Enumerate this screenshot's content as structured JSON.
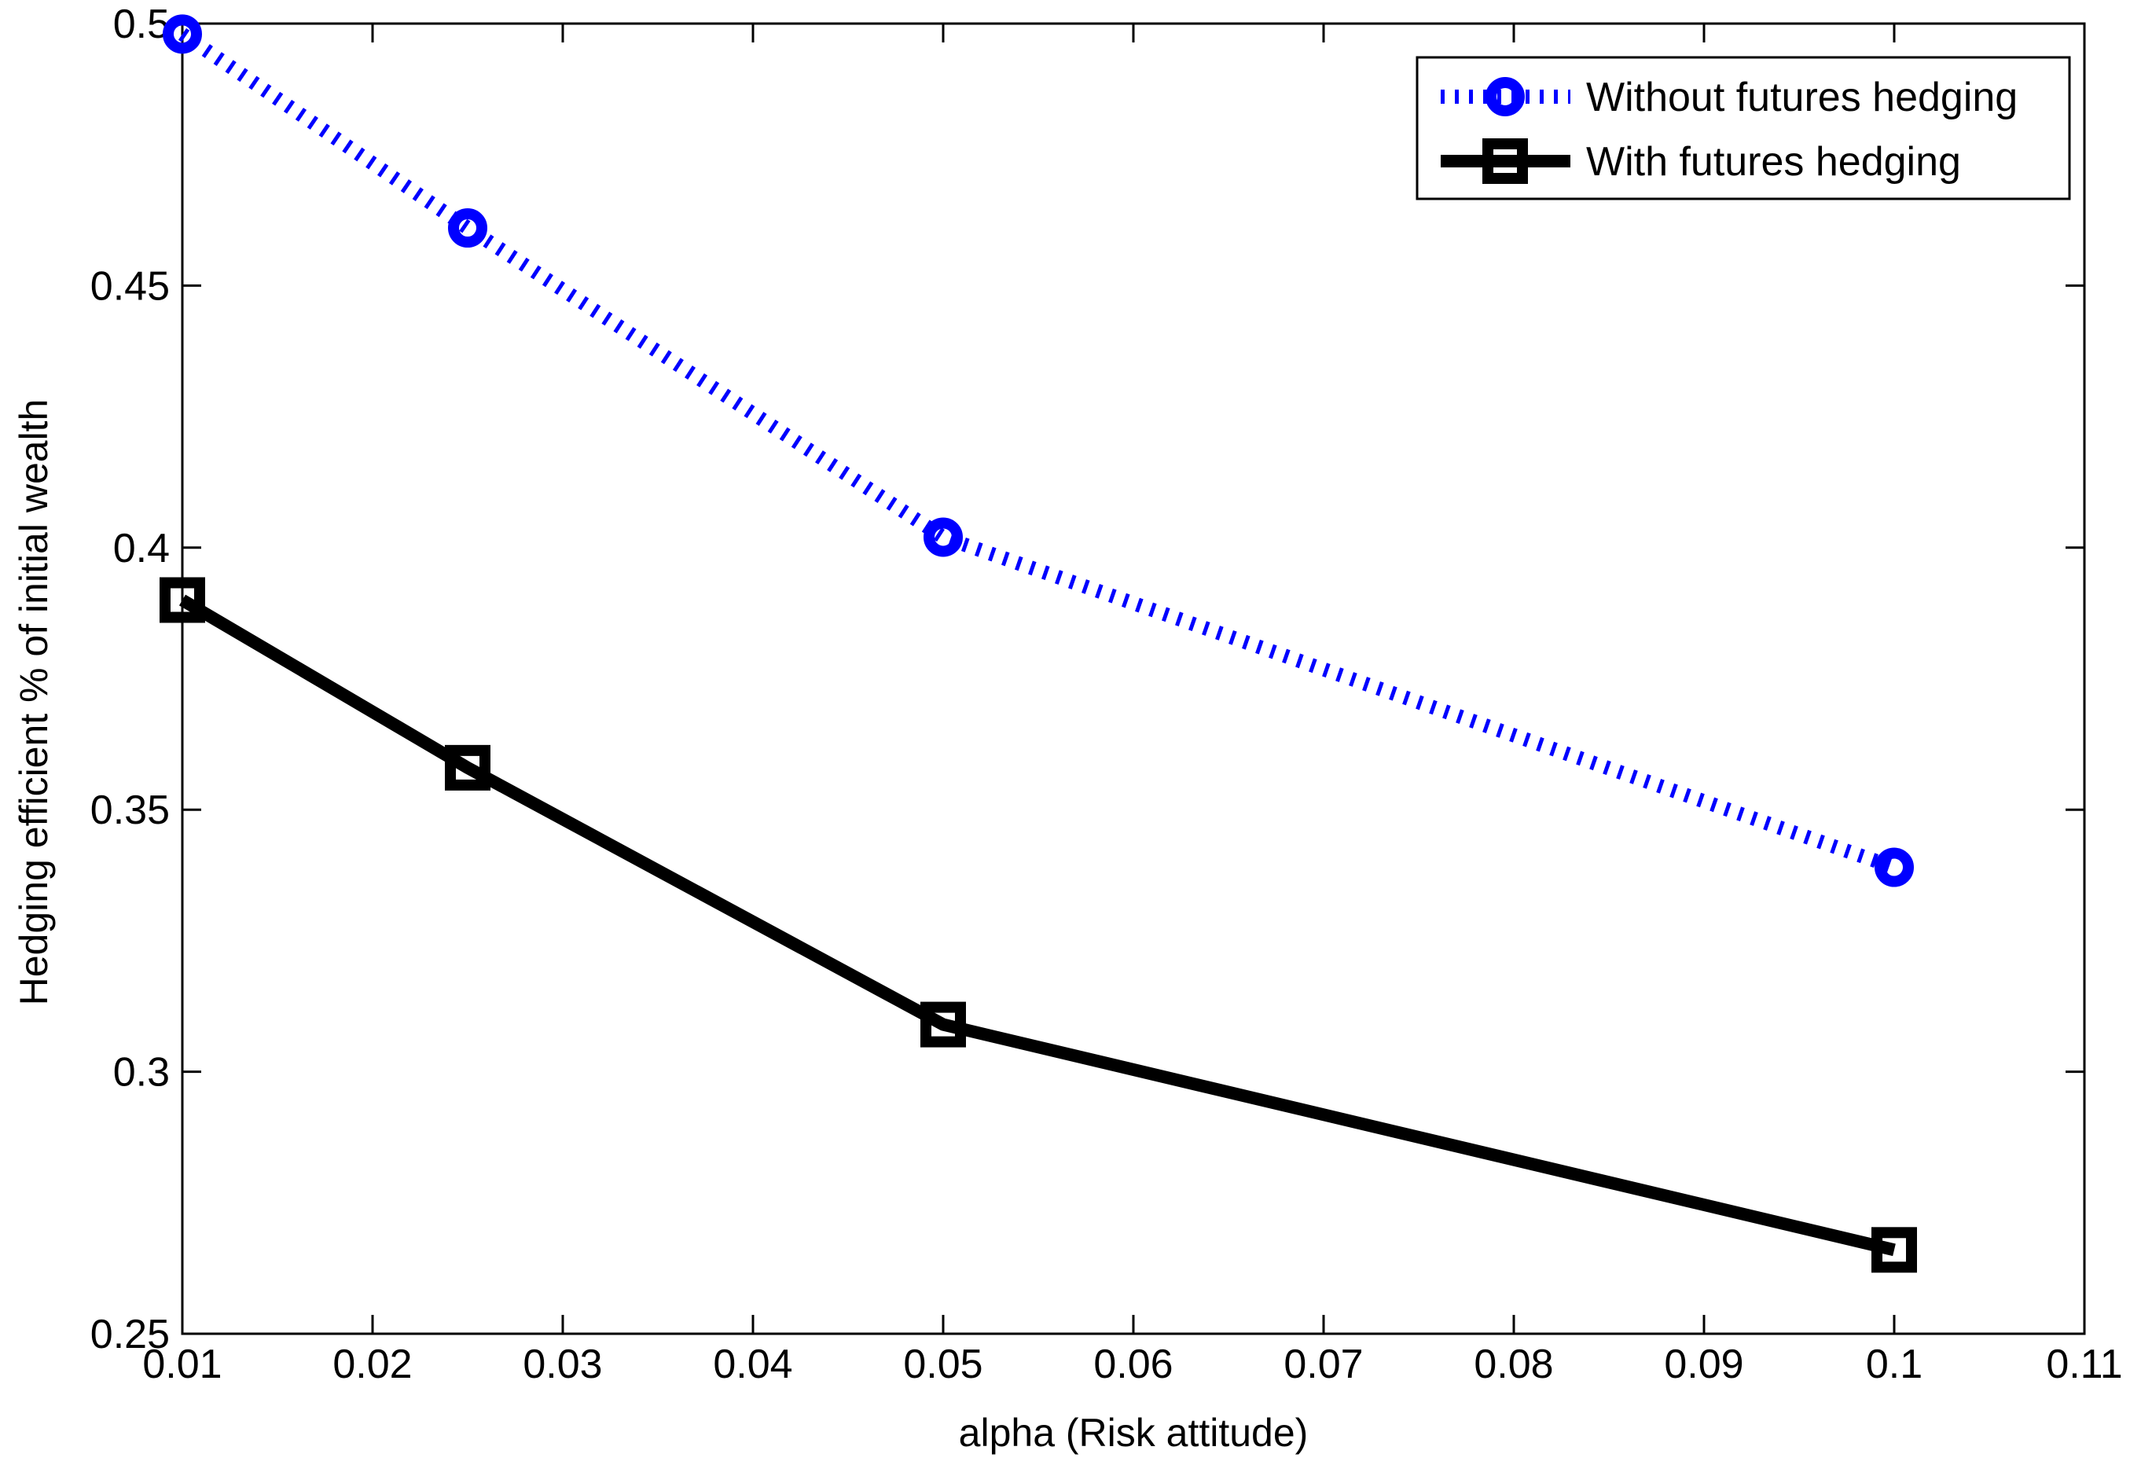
{
  "chart_data": {
    "type": "line",
    "xlabel": "alpha (Risk attitude)",
    "ylabel": "Hedging efficient % of initial wealth",
    "xlim": [
      0.01,
      0.11
    ],
    "ylim": [
      0.25,
      0.5
    ],
    "x_ticks": [
      0.01,
      0.02,
      0.03,
      0.04,
      0.05,
      0.06,
      0.07,
      0.08,
      0.09,
      0.1,
      0.11
    ],
    "x_tick_labels": [
      "0.01",
      "0.02",
      "0.03",
      "0.04",
      "0.05",
      "0.06",
      "0.07",
      "0.08",
      "0.09",
      "0.1",
      "0.11"
    ],
    "y_ticks": [
      0.25,
      0.3,
      0.35,
      0.4,
      0.45,
      0.5
    ],
    "y_tick_labels": [
      "0.25",
      "0.3",
      "0.35",
      "0.4",
      "0.45",
      "0.5"
    ],
    "grid": false,
    "legend_position": "top-right",
    "x": [
      0.01,
      0.025,
      0.05,
      0.1
    ],
    "series": [
      {
        "name": "Without futures hedging",
        "values": [
          0.498,
          0.461,
          0.402,
          0.339
        ],
        "color": "#0000ff",
        "line_style": "dotted",
        "marker": "circle"
      },
      {
        "name": "With futures hedging",
        "values": [
          0.39,
          0.358,
          0.309,
          0.266
        ],
        "color": "#000000",
        "line_style": "solid",
        "marker": "square"
      }
    ]
  }
}
